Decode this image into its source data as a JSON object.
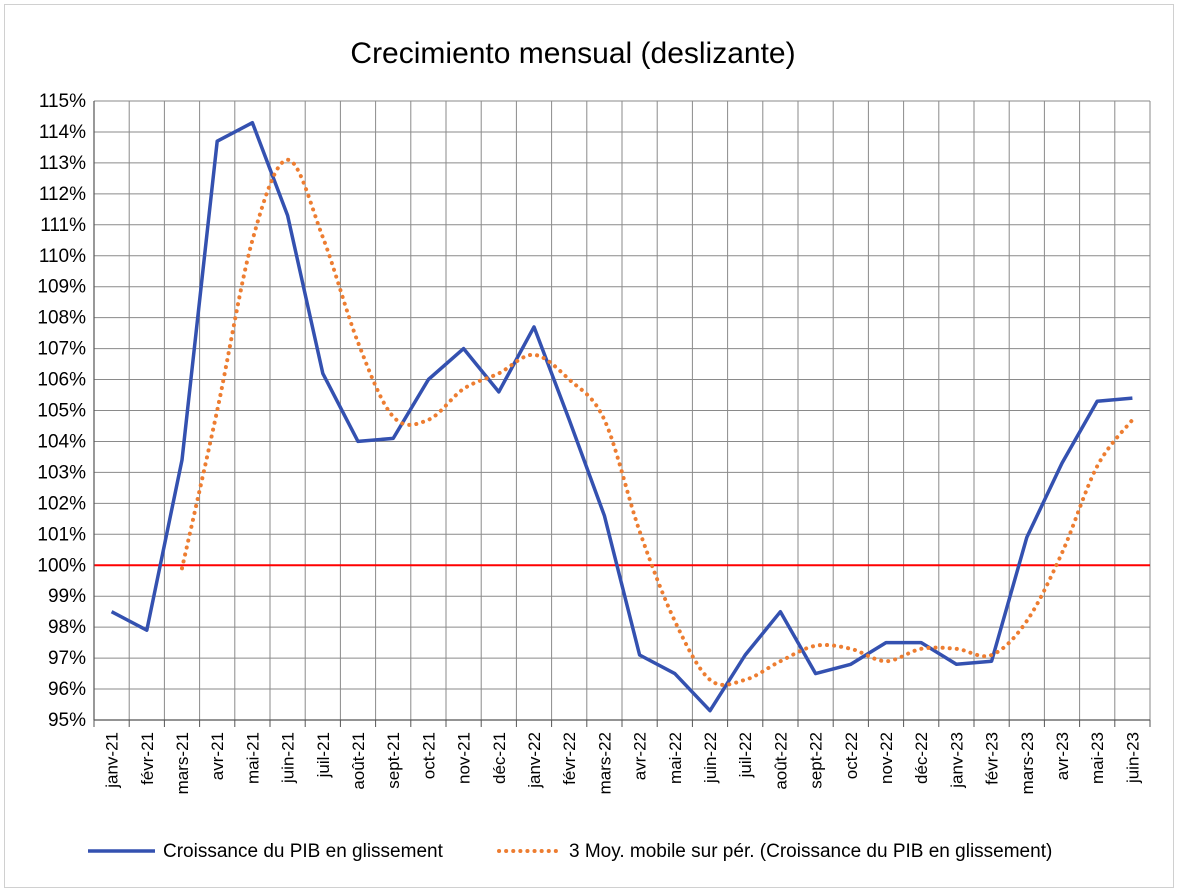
{
  "chart_data": {
    "type": "line",
    "title": "Crecimiento mensual (deslizante)",
    "xlabel": "",
    "ylabel": "",
    "categories": [
      "janv-21",
      "févr-21",
      "mars-21",
      "avr-21",
      "mai-21",
      "juin-21",
      "juil-21",
      "août-21",
      "sept-21",
      "oct-21",
      "nov-21",
      "déc-21",
      "janv-22",
      "févr-22",
      "mars-22",
      "avr-22",
      "mai-22",
      "juin-22",
      "juil-22",
      "août-22",
      "sept-22",
      "oct-22",
      "nov-22",
      "déc-22",
      "janv-23",
      "févr-23",
      "mars-23",
      "avr-23",
      "mai-23",
      "juin-23"
    ],
    "y_ticks": [
      "95%",
      "96%",
      "97%",
      "98%",
      "99%",
      "100%",
      "101%",
      "102%",
      "103%",
      "104%",
      "105%",
      "106%",
      "107%",
      "108%",
      "109%",
      "110%",
      "111%",
      "112%",
      "113%",
      "114%",
      "115%"
    ],
    "ylim": [
      95,
      115
    ],
    "reference_line": {
      "value": 100,
      "color": "#ff0000"
    },
    "grid": true,
    "legend_position": "bottom",
    "series": [
      {
        "name": "Croissance du PIB en glissement",
        "style": "solid",
        "color": "#3451b0",
        "values": [
          98.5,
          97.9,
          103.4,
          113.7,
          114.3,
          111.3,
          106.2,
          104.0,
          104.1,
          106.0,
          107.0,
          105.6,
          107.7,
          104.7,
          101.6,
          97.1,
          96.5,
          95.3,
          97.1,
          98.5,
          96.5,
          96.8,
          97.5,
          97.5,
          96.8,
          96.9,
          100.9,
          103.3,
          105.3,
          105.4
        ]
      },
      {
        "name": "3 Moy. mobile sur pér. (Croissance du PIB en glissement)",
        "style": "dotted",
        "color": "#ed7d31",
        "values": [
          null,
          null,
          99.9,
          105.0,
          110.5,
          113.1,
          110.6,
          107.2,
          104.8,
          104.7,
          105.7,
          106.2,
          106.8,
          106.0,
          104.7,
          101.1,
          98.2,
          96.3,
          96.3,
          96.9,
          97.4,
          97.3,
          96.9,
          97.3,
          97.3,
          97.1,
          98.2,
          100.4,
          103.2,
          104.7
        ]
      }
    ]
  }
}
